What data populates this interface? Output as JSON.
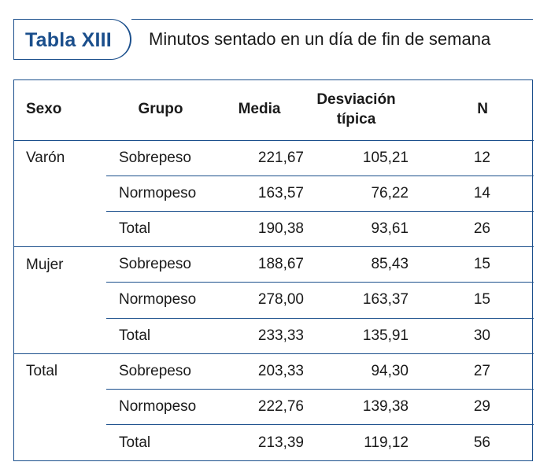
{
  "caption": {
    "label": "Tabla XIII",
    "title": "Minutos sentado en un día de fin de semana"
  },
  "colors": {
    "accent": "#1b4f8c",
    "text": "#1a1a1a"
  },
  "table": {
    "headers": {
      "sexo": "Sexo",
      "grupo": "Grupo",
      "media": "Media",
      "desviacion_l1": "Desviación",
      "desviacion_l2": "típica",
      "n": "N"
    },
    "rows": [
      {
        "sexo": "Varón",
        "grupo": "Sobrepeso",
        "media": "221,67",
        "desviacion": "105,21",
        "n": "12"
      },
      {
        "sexo": "",
        "grupo": "Normopeso",
        "media": "163,57",
        "desviacion": "76,22",
        "n": "14"
      },
      {
        "sexo": "",
        "grupo": "Total",
        "media": "190,38",
        "desviacion": "93,61",
        "n": "26"
      },
      {
        "sexo": "Mujer",
        "grupo": "Sobrepeso",
        "media": "188,67",
        "desviacion": "85,43",
        "n": "15"
      },
      {
        "sexo": "",
        "grupo": "Normopeso",
        "media": "278,00",
        "desviacion": "163,37",
        "n": "15"
      },
      {
        "sexo": "",
        "grupo": "Total",
        "media": "233,33",
        "desviacion": "135,91",
        "n": "30"
      },
      {
        "sexo": "Total",
        "grupo": "Sobrepeso",
        "media": "203,33",
        "desviacion": "94,30",
        "n": "27"
      },
      {
        "sexo": "",
        "grupo": "Normopeso",
        "media": "222,76",
        "desviacion": "139,38",
        "n": "29"
      },
      {
        "sexo": "",
        "grupo": "Total",
        "media": "213,39",
        "desviacion": "119,12",
        "n": "56"
      }
    ]
  }
}
